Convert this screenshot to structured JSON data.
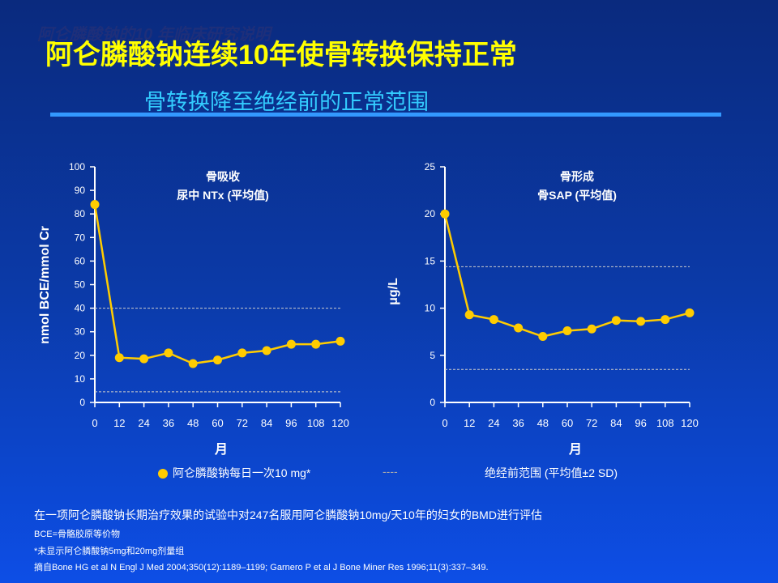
{
  "header": {
    "ghost_title": "阿仑膦酸钠的10 年临床研究说明",
    "title": "阿仑膦酸钠连续10年使骨转换保持正常",
    "subtitle": "骨转换降至绝经前的正常范围"
  },
  "chart_data": [
    {
      "type": "line",
      "title": "骨吸收",
      "subtitle": "尿中 NTx (平均值)",
      "ylabel": "nmol BCE/mmol Cr",
      "xlabel": "月",
      "ylim": [
        0,
        100
      ],
      "yticks": [
        0,
        10,
        20,
        30,
        40,
        50,
        60,
        70,
        80,
        90,
        100
      ],
      "x": [
        0,
        12,
        24,
        36,
        48,
        60,
        72,
        84,
        96,
        108,
        120
      ],
      "values": [
        84,
        19,
        18.5,
        21,
        16.5,
        18,
        21,
        22,
        24.7,
        24.7,
        26
      ],
      "reference_range": [
        4.5,
        40
      ]
    },
    {
      "type": "line",
      "title": "骨形成",
      "subtitle": "骨SAP (平均值)",
      "ylabel": "μg/L",
      "xlabel": "月",
      "ylim": [
        0,
        25
      ],
      "yticks": [
        0,
        5,
        10,
        15,
        20,
        25
      ],
      "x": [
        0,
        12,
        24,
        36,
        48,
        60,
        72,
        84,
        96,
        108,
        120
      ],
      "values": [
        20,
        9.3,
        8.8,
        7.9,
        7,
        7.6,
        7.8,
        8.7,
        8.6,
        8.8,
        9.5
      ],
      "reference_range": [
        3.5,
        14.4
      ]
    }
  ],
  "legend": {
    "series": "阿仑膦酸钠每日一次10 mg*",
    "range": "绝经前范围 (平均值±2 SD)",
    "range_symbol": "----"
  },
  "footnotes": [
    "在一项阿仑膦酸钠长期治疗效果的试验中对247名服用阿仑膦酸钠10mg/天10年的妇女的BMD进行评估",
    "BCE=骨骼胶原等价物",
    "*未显示阿仑膦酸钠5mg和20mg剂量组",
    "摘自Bone HG et al N Engl J Med 2004;350(12):1189–1199; Garnero P et al J Bone Miner Res 1996;11(3):337–349."
  ],
  "colors": {
    "series": "#ffcc00",
    "title": "#ffff00",
    "subtitle": "#33ccff"
  }
}
